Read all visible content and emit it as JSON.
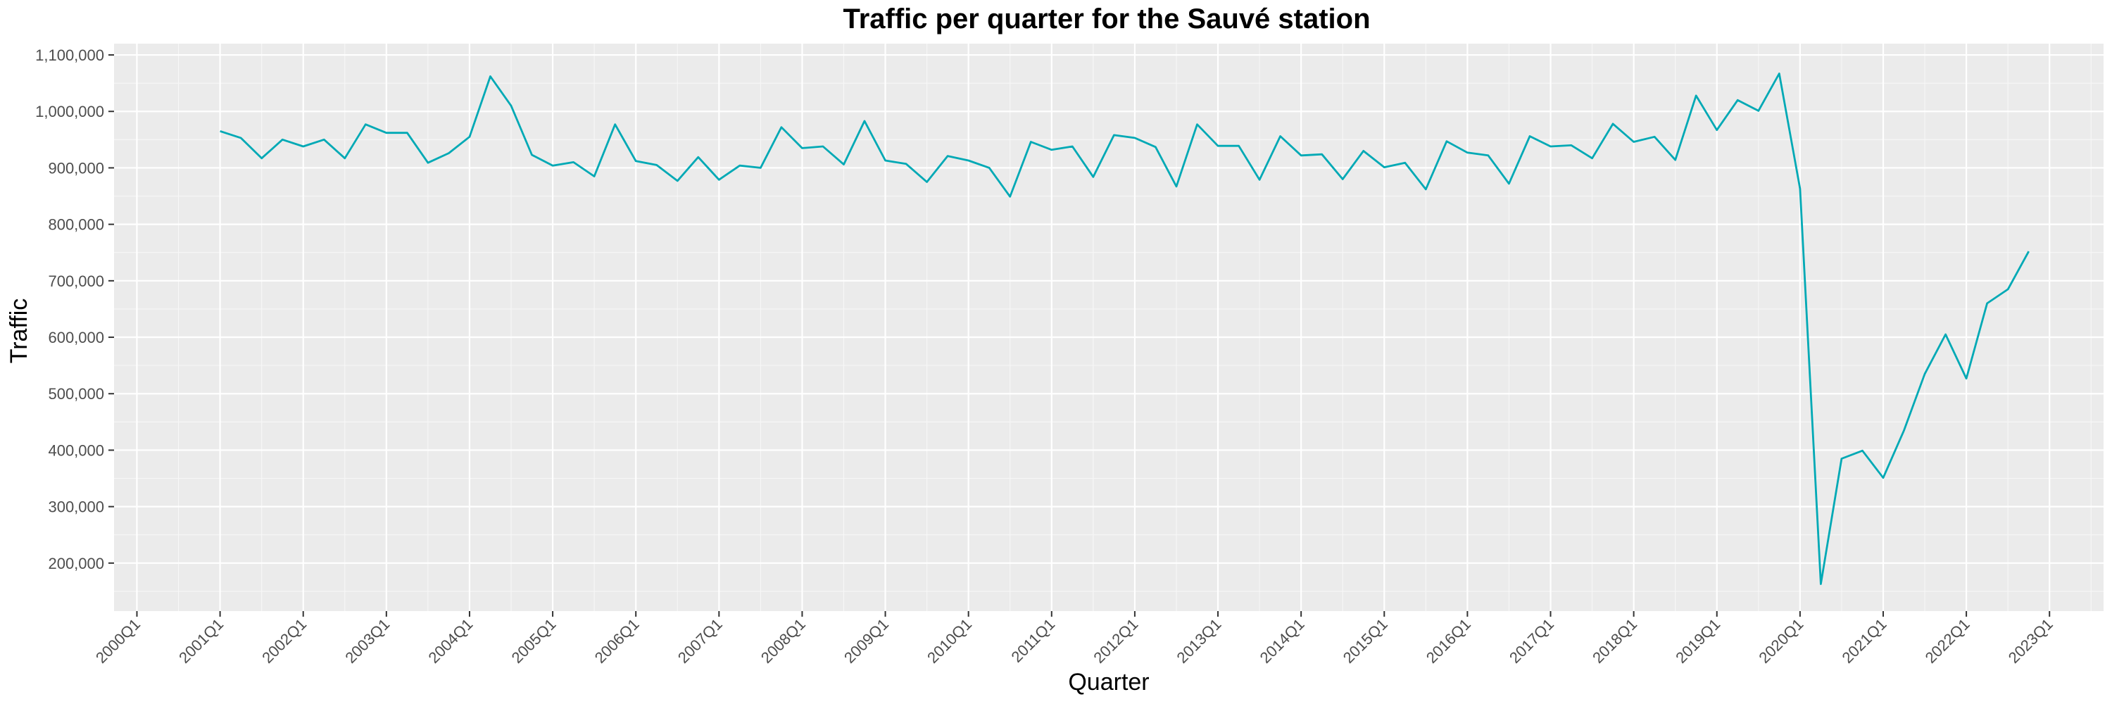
{
  "chart_data": {
    "type": "line",
    "title": "Traffic per quarter for the Sauvé station",
    "xlabel": "Quarter",
    "ylabel": "Traffic",
    "line_color": "#00A9B5",
    "panel_background": "#EBEBEB",
    "grid": true,
    "legend": "none",
    "x_axis": {
      "ticks": [
        "2000Q1",
        "2001Q1",
        "2002Q1",
        "2003Q1",
        "2004Q1",
        "2005Q1",
        "2006Q1",
        "2007Q1",
        "2008Q1",
        "2009Q1",
        "2010Q1",
        "2011Q1",
        "2012Q1",
        "2013Q1",
        "2014Q1",
        "2015Q1",
        "2016Q1",
        "2017Q1",
        "2018Q1",
        "2019Q1",
        "2020Q1",
        "2021Q1",
        "2022Q1",
        "2023Q1"
      ],
      "range": [
        "2000Q1",
        "2023Q1"
      ]
    },
    "y_axis": {
      "ticks": [
        200000,
        300000,
        400000,
        500000,
        600000,
        700000,
        800000,
        900000,
        1000000,
        1100000
      ],
      "tick_labels": [
        "200,000",
        "300,000",
        "400,000",
        "500,000",
        "600,000",
        "700,000",
        "800,000",
        "900,000",
        "1,000,000",
        "1,100,000"
      ],
      "ylim": [
        115000,
        1120000
      ]
    },
    "series": [
      {
        "x_start": "2001Q1",
        "values": [
          965000,
          953000,
          917000,
          950000,
          938000,
          950000,
          917000,
          977000,
          962000,
          962000,
          909000,
          926000,
          955000,
          1062000,
          1010000,
          923000,
          904000,
          910000,
          885000,
          977000,
          912000,
          905000,
          877000,
          919000,
          879000,
          904000,
          900000,
          972000,
          935000,
          938000,
          906000,
          983000,
          913000,
          907000,
          875000,
          921000,
          913000,
          900000,
          849000,
          946000,
          932000,
          938000,
          884000,
          958000,
          953000,
          937000,
          867000,
          977000,
          939000,
          939000,
          879000,
          956000,
          922000,
          924000,
          880000,
          930000,
          901000,
          909000,
          862000,
          947000,
          927000,
          922000,
          872000,
          956000,
          938000,
          940000,
          917000,
          978000,
          946000,
          955000,
          914000,
          1028000,
          967000,
          1020000,
          1001000,
          1067000,
          863000,
          163000,
          385000,
          399000,
          351000,
          435000,
          535000,
          605000,
          527000,
          660000,
          685000,
          752000
        ]
      }
    ]
  }
}
